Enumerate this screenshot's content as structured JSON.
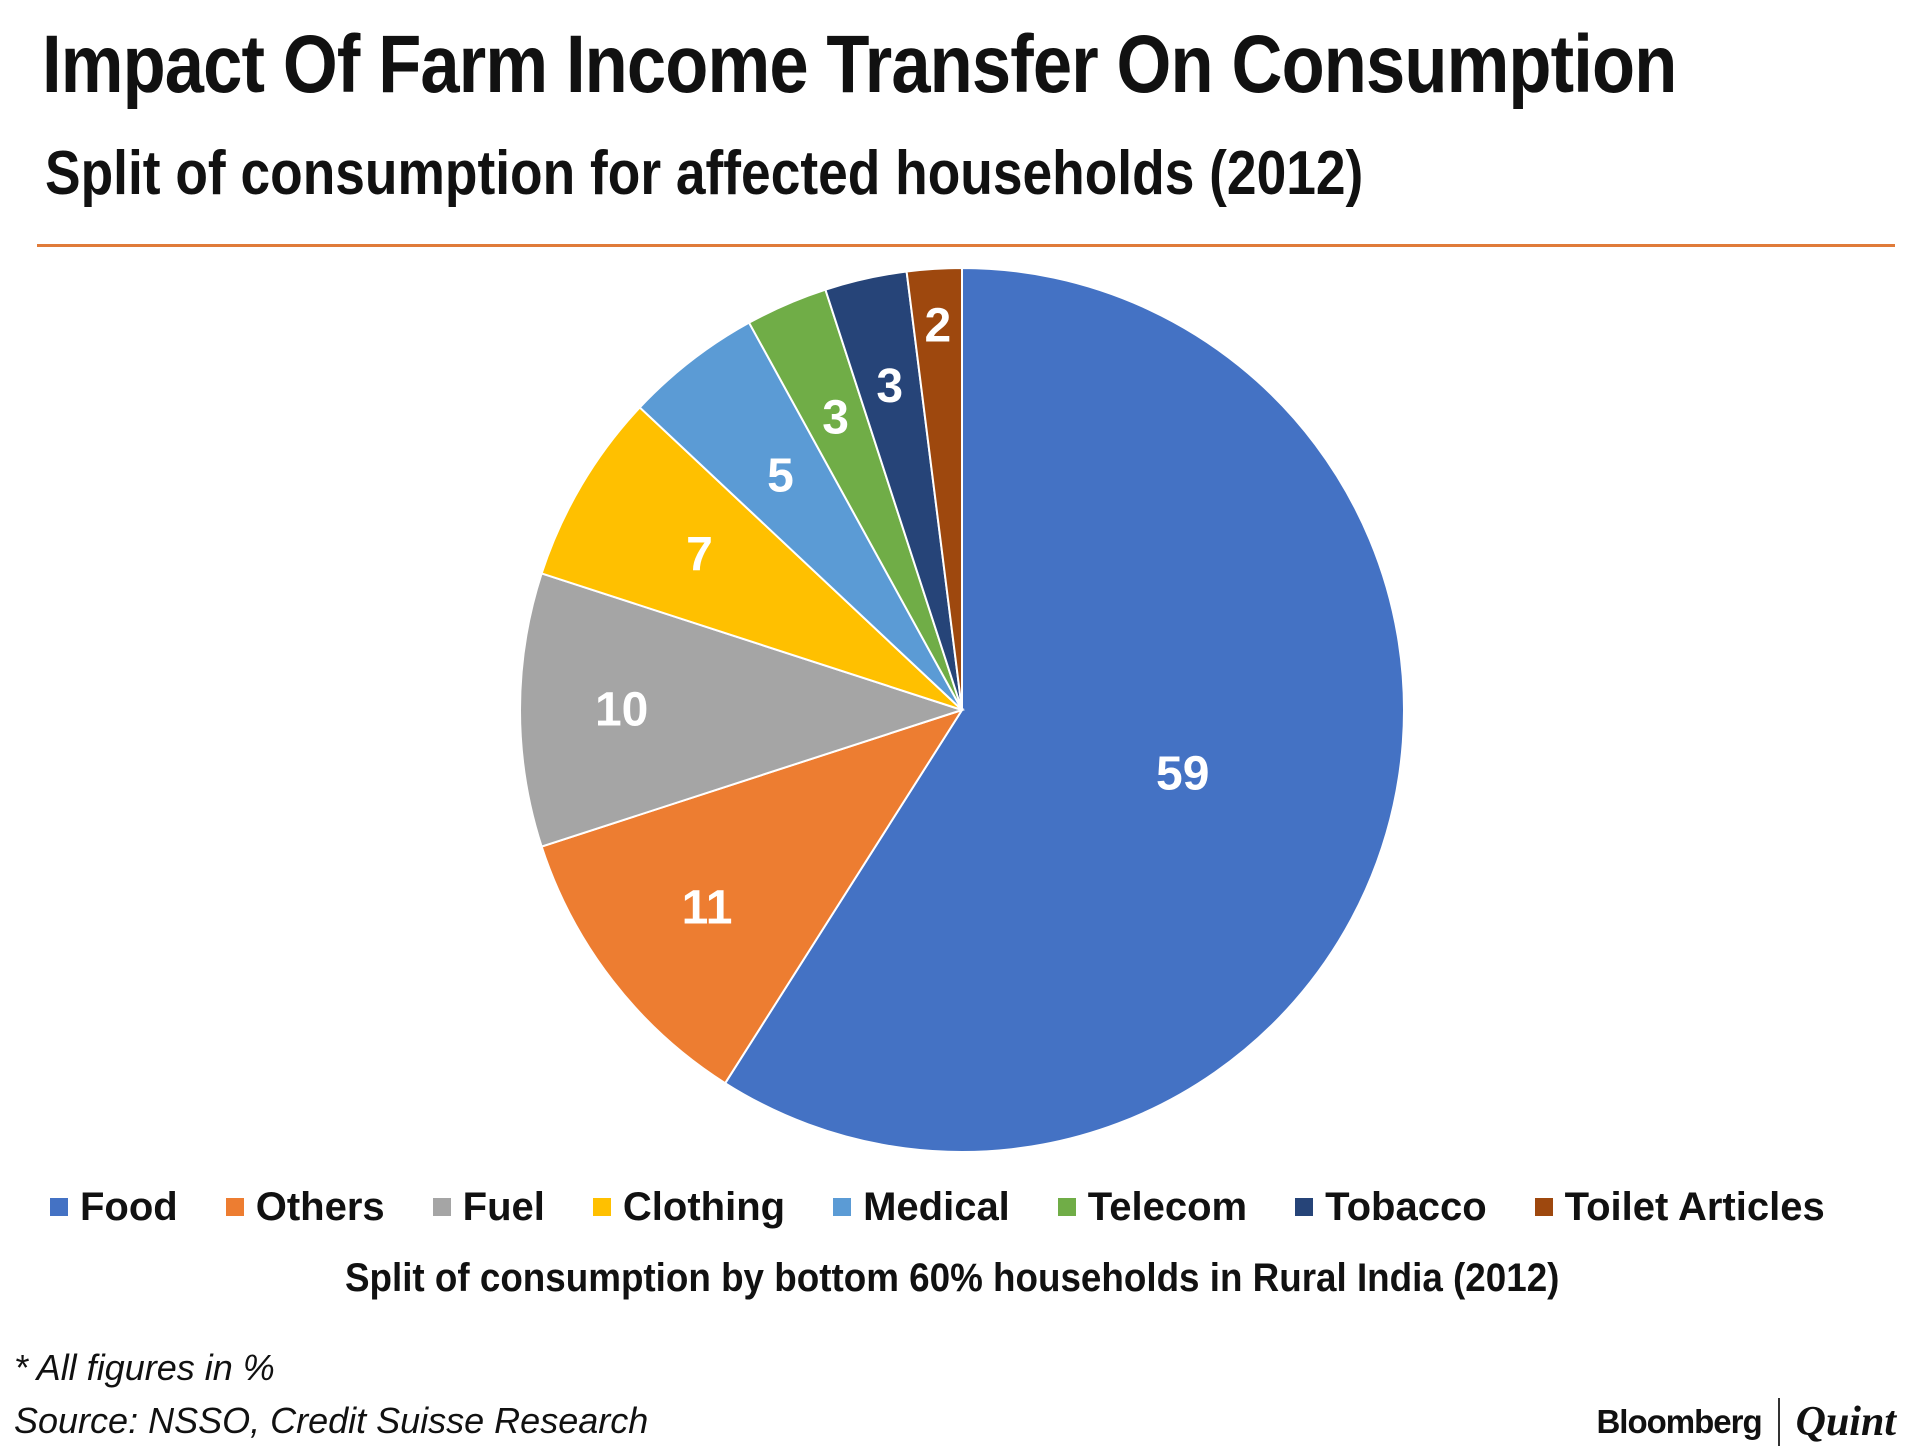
{
  "header": {
    "title": "Impact Of Farm Income Transfer On Consumption",
    "subtitle": "Split of consumption for affected households (2012)"
  },
  "chart_data": {
    "type": "pie",
    "title": "Impact Of Farm Income Transfer On Consumption",
    "subtitle": "Split of consumption for affected households (2012)",
    "xlabel": "Split of consumption by bottom 60% households in Rural India (2012)",
    "categories": [
      "Food",
      "Others",
      "Fuel",
      "Clothing",
      "Medical",
      "Telecom",
      "Tobacco",
      "Toilet Articles"
    ],
    "values": [
      59,
      11,
      10,
      7,
      5,
      3,
      3,
      2
    ],
    "colors": [
      "#4472c4",
      "#ed7d31",
      "#a5a5a5",
      "#ffc000",
      "#5b9bd5",
      "#70ad47",
      "#264478",
      "#9e480e"
    ],
    "legend_position": "bottom"
  },
  "legend": {
    "items": [
      {
        "label": "Food",
        "color": "#4472c4"
      },
      {
        "label": "Others",
        "color": "#ed7d31"
      },
      {
        "label": "Fuel",
        "color": "#a5a5a5"
      },
      {
        "label": "Clothing",
        "color": "#ffc000"
      },
      {
        "label": "Medical",
        "color": "#5b9bd5"
      },
      {
        "label": "Telecom",
        "color": "#70ad47"
      },
      {
        "label": "Tobacco",
        "color": "#264478"
      },
      {
        "label": "Toilet Articles",
        "color": "#9e480e"
      }
    ]
  },
  "footer": {
    "note": "* All figures in %",
    "source": "Source: NSSO, Credit Suisse Research",
    "brand_left": "Bloomberg",
    "brand_right": "Quint"
  }
}
